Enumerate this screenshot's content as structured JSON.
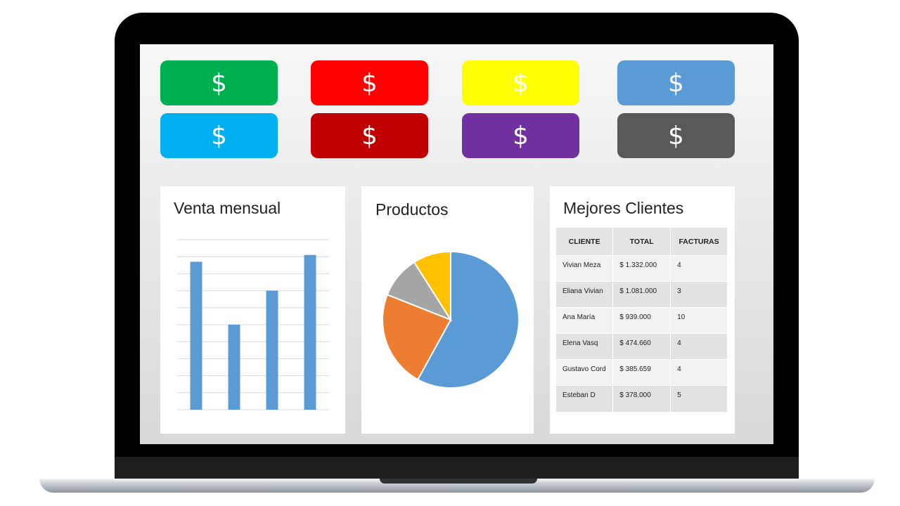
{
  "kpis": [
    {
      "symbol": "$",
      "color": "#00b050"
    },
    {
      "symbol": "$",
      "color": "#ff0000"
    },
    {
      "symbol": "$",
      "color": "#ffff00"
    },
    {
      "symbol": "$",
      "color": "#5b9bd5"
    },
    {
      "symbol": "$",
      "color": "#00b0f0"
    },
    {
      "symbol": "$",
      "color": "#c00000"
    },
    {
      "symbol": "$",
      "color": "#7030a0"
    },
    {
      "symbol": "$",
      "color": "#595959"
    }
  ],
  "sales_panel": {
    "title": "Venta mensual"
  },
  "products_panel": {
    "title": "Productos"
  },
  "clients_panel": {
    "title": "Mejores Clientes",
    "headers": [
      "CLIENTE",
      "TOTAL",
      "FACTURAS"
    ],
    "rows": [
      [
        "Vivian Meza",
        "$ 1.332.000",
        "4"
      ],
      [
        "Eliana Vivian",
        "$ 1.081.000",
        "3"
      ],
      [
        "Ana María",
        "$ 939.000",
        "10"
      ],
      [
        "Elena Vasq",
        "$ 474.660",
        "4"
      ],
      [
        "Gustavo Cord",
        "$ 385.659",
        "4"
      ],
      [
        "Esteban D",
        "$ 378.000",
        "5"
      ]
    ]
  },
  "chart_data": [
    {
      "type": "bar",
      "title": "Venta mensual",
      "categories": [
        "",
        "",
        "",
        ""
      ],
      "values": [
        87,
        50,
        70,
        91
      ],
      "ylim": [
        0,
        100
      ],
      "grid": true,
      "color": "#5b9bd5"
    },
    {
      "type": "pie",
      "title": "Productos",
      "values": [
        58,
        23,
        10,
        9
      ],
      "colors": [
        "#5b9bd5",
        "#ed7d31",
        "#a5a5a5",
        "#ffc000"
      ]
    }
  ]
}
